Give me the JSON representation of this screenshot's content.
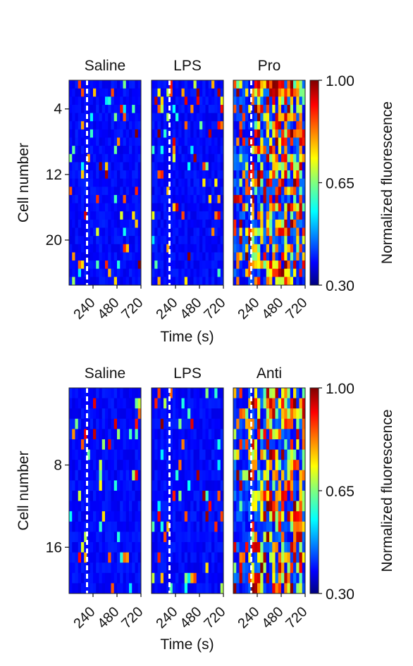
{
  "chart_data": [
    {
      "type": "heatmap",
      "panels": [
        {
          "title": "Saline",
          "cells": 25,
          "seed": 11,
          "mode": "quiet"
        },
        {
          "title": "LPS",
          "cells": 25,
          "seed": 23,
          "mode": "quiet"
        },
        {
          "title": "Pro",
          "cells": 25,
          "seed": 37,
          "mode": "active"
        }
      ],
      "xlabel": "Time (s)",
      "ylabel": "Cell number",
      "x_range": [
        0,
        720
      ],
      "x_ticks": [
        "240",
        "480",
        "720"
      ],
      "stimulus_time": 180,
      "y_ticks": [
        {
          "cell": 4,
          "label": "4"
        },
        {
          "cell": 12,
          "label": "12"
        },
        {
          "cell": 20,
          "label": "20"
        }
      ],
      "colorbar": {
        "label": "Normalized fluorescence",
        "min": 0.3,
        "mid": 0.65,
        "max": 1.0,
        "ticks": [
          "1.00",
          "0.65",
          "0.30"
        ],
        "colormap": "jet"
      }
    },
    {
      "type": "heatmap",
      "panels": [
        {
          "title": "Saline",
          "cells": 20,
          "seed": 51,
          "mode": "quiet"
        },
        {
          "title": "LPS",
          "cells": 20,
          "seed": 67,
          "mode": "quiet"
        },
        {
          "title": "Anti",
          "cells": 20,
          "seed": 79,
          "mode": "active"
        }
      ],
      "xlabel": "Time (s)",
      "ylabel": "Cell number",
      "x_range": [
        0,
        720
      ],
      "x_ticks": [
        "240",
        "480",
        "720"
      ],
      "stimulus_time": 180,
      "y_ticks": [
        {
          "cell": 8,
          "label": "8"
        },
        {
          "cell": 16,
          "label": "16"
        }
      ],
      "colorbar": {
        "label": "Normalized fluorescence",
        "min": 0.3,
        "mid": 0.65,
        "max": 1.0,
        "ticks": [
          "1.00",
          "0.65",
          "0.30"
        ],
        "colormap": "jet"
      }
    }
  ]
}
